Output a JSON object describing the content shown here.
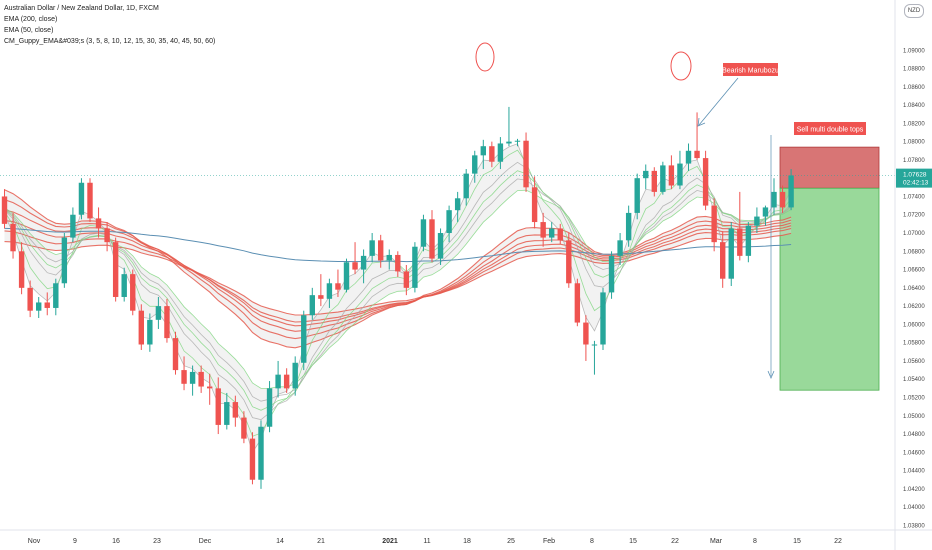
{
  "legend": {
    "title": "Australian Dollar / New Zealand Dollar, 1D, FXCM",
    "line2": "EMA (200, close)",
    "line3": "EMA (50, close)",
    "line4": "CM_Guppy_EMA&#039;s (3, 5, 8, 10, 12, 15, 30, 35, 40, 45, 50, 60)"
  },
  "currency_badge": "NZD",
  "colors": {
    "up": "#26a69a",
    "down": "#ef5350",
    "ema200": "#5b8fb3",
    "guppy_fast_up": "#7fd67f",
    "guppy_fast": "#a9a9a9",
    "guppy_slow": "#e55a4e",
    "stop_zone": "#d87575",
    "target_zone": "#99d99a",
    "axis_text": "#444444"
  },
  "chart_data": {
    "type": "candlestick",
    "ylim": [
      1.0375,
      1.0955
    ],
    "yticks": [
      "1.03800",
      "1.04000",
      "1.04200",
      "1.04400",
      "1.04600",
      "1.04800",
      "1.05000",
      "1.05200",
      "1.05400",
      "1.05600",
      "1.05800",
      "1.06000",
      "1.06200",
      "1.06400",
      "1.06600",
      "1.06800",
      "1.07000",
      "1.07200",
      "1.07400",
      "1.07600",
      "1.07800",
      "1.08000",
      "1.08200",
      "1.08400",
      "1.08600",
      "1.08800",
      "1.09000"
    ],
    "xticks": [
      "Nov",
      "9",
      "16",
      "23",
      "Dec",
      "14",
      "21",
      "2021",
      "11",
      "18",
      "25",
      "Feb",
      "8",
      "15",
      "22",
      "Mar",
      "8",
      "15",
      "22"
    ],
    "last_price": "1.07628",
    "countdown": "02:42:13",
    "annotations": {
      "bearish_label": "Bearish Marubozu",
      "sell_label": "Sell multi double tops"
    },
    "trade": {
      "entry": 1.0749,
      "stop": 1.0794,
      "target": 1.0528
    },
    "candles": [
      [
        1.074,
        1.0748,
        1.0705,
        1.071
      ],
      [
        1.071,
        1.0722,
        1.0672,
        1.068
      ],
      [
        1.068,
        1.069,
        1.0633,
        1.064
      ],
      [
        1.064,
        1.0648,
        1.0608,
        1.0615
      ],
      [
        1.0615,
        1.063,
        1.0607,
        1.0624
      ],
      [
        1.0624,
        1.0635,
        1.061,
        1.0618
      ],
      [
        1.0618,
        1.065,
        1.061,
        1.0645
      ],
      [
        1.0645,
        1.07,
        1.064,
        1.0695
      ],
      [
        1.0695,
        1.0728,
        1.069,
        1.072
      ],
      [
        1.072,
        1.076,
        1.0715,
        1.0755
      ],
      [
        1.0755,
        1.076,
        1.0712,
        1.0716
      ],
      [
        1.0716,
        1.0728,
        1.0695,
        1.0705
      ],
      [
        1.0705,
        1.0712,
        1.068,
        1.069
      ],
      [
        1.069,
        1.0695,
        1.0625,
        1.063
      ],
      [
        1.063,
        1.0662,
        1.0625,
        1.0655
      ],
      [
        1.0655,
        1.066,
        1.061,
        1.0615
      ],
      [
        1.0615,
        1.0622,
        1.0572,
        1.0578
      ],
      [
        1.0578,
        1.0612,
        1.057,
        1.0605
      ],
      [
        1.0605,
        1.063,
        1.0595,
        1.062
      ],
      [
        1.062,
        1.0628,
        1.058,
        1.0585
      ],
      [
        1.0585,
        1.0592,
        1.0545,
        1.055
      ],
      [
        1.055,
        1.0565,
        1.0528,
        1.0535
      ],
      [
        1.0535,
        1.0555,
        1.0522,
        1.0548
      ],
      [
        1.0548,
        1.0555,
        1.0525,
        1.0532
      ],
      [
        1.0532,
        1.0546,
        1.0512,
        1.053
      ],
      [
        1.053,
        1.0542,
        1.048,
        1.049
      ],
      [
        1.049,
        1.0525,
        1.0485,
        1.0515
      ],
      [
        1.0515,
        1.0522,
        1.0488,
        1.0498
      ],
      [
        1.0498,
        1.0505,
        1.047,
        1.0475
      ],
      [
        1.0475,
        1.0482,
        1.0425,
        1.043
      ],
      [
        1.043,
        1.0495,
        1.042,
        1.0488
      ],
      [
        1.0488,
        1.0538,
        1.0482,
        1.053
      ],
      [
        1.053,
        1.056,
        1.052,
        1.0545
      ],
      [
        1.0545,
        1.0552,
        1.0525,
        1.053
      ],
      [
        1.053,
        1.0565,
        1.0522,
        1.0558
      ],
      [
        1.0558,
        1.0615,
        1.055,
        1.061
      ],
      [
        1.061,
        1.064,
        1.0605,
        1.0632
      ],
      [
        1.0632,
        1.0655,
        1.062,
        1.0628
      ],
      [
        1.0628,
        1.065,
        1.0618,
        1.0645
      ],
      [
        1.0645,
        1.066,
        1.063,
        1.0638
      ],
      [
        1.0638,
        1.0672,
        1.0635,
        1.0668
      ],
      [
        1.0668,
        1.069,
        1.0655,
        1.066
      ],
      [
        1.066,
        1.0682,
        1.0645,
        1.0675
      ],
      [
        1.0675,
        1.07,
        1.0668,
        1.0692
      ],
      [
        1.0692,
        1.0698,
        1.0662,
        1.067
      ],
      [
        1.067,
        1.0682,
        1.066,
        1.0676
      ],
      [
        1.0676,
        1.068,
        1.0652,
        1.0658
      ],
      [
        1.0658,
        1.0665,
        1.0632,
        1.064
      ],
      [
        1.064,
        1.069,
        1.0635,
        1.0685
      ],
      [
        1.0685,
        1.072,
        1.068,
        1.0715
      ],
      [
        1.0715,
        1.0725,
        1.0668,
        1.0672
      ],
      [
        1.0672,
        1.0705,
        1.0665,
        1.07
      ],
      [
        1.07,
        1.073,
        1.069,
        1.0725
      ],
      [
        1.0725,
        1.0745,
        1.0712,
        1.0738
      ],
      [
        1.0738,
        1.077,
        1.073,
        1.0765
      ],
      [
        1.0765,
        1.079,
        1.0755,
        1.0785
      ],
      [
        1.0785,
        1.0802,
        1.077,
        1.0795
      ],
      [
        1.0795,
        1.08,
        1.0772,
        1.0778
      ],
      [
        1.0778,
        1.0805,
        1.077,
        1.0798
      ],
      [
        1.0798,
        1.0838,
        1.0795,
        1.08
      ],
      [
        1.08,
        1.0803,
        1.0795,
        1.0801
      ],
      [
        1.0801,
        1.081,
        1.0745,
        1.075
      ],
      [
        1.075,
        1.0762,
        1.0705,
        1.0712
      ],
      [
        1.0712,
        1.0722,
        1.0685,
        1.0695
      ],
      [
        1.0695,
        1.0712,
        1.069,
        1.0705
      ],
      [
        1.0705,
        1.071,
        1.0688,
        1.0692
      ],
      [
        1.0692,
        1.07,
        1.064,
        1.0645
      ],
      [
        1.0645,
        1.065,
        1.0598,
        1.0602
      ],
      [
        1.0602,
        1.061,
        1.056,
        1.0578
      ],
      [
        1.0578,
        1.0582,
        1.0545,
        1.0578
      ],
      [
        1.0578,
        1.064,
        1.0572,
        1.0635
      ],
      [
        1.0635,
        1.068,
        1.0628,
        1.0675
      ],
      [
        1.0675,
        1.07,
        1.0665,
        1.0692
      ],
      [
        1.0692,
        1.073,
        1.0685,
        1.0722
      ],
      [
        1.0722,
        1.0765,
        1.0715,
        1.076
      ],
      [
        1.076,
        1.0775,
        1.0748,
        1.0768
      ],
      [
        1.0768,
        1.0772,
        1.074,
        1.0745
      ],
      [
        1.0745,
        1.0778,
        1.0742,
        1.0774
      ],
      [
        1.0774,
        1.0785,
        1.0748,
        1.0752
      ],
      [
        1.0752,
        1.079,
        1.0748,
        1.0776
      ],
      [
        1.0776,
        1.0798,
        1.0768,
        1.079
      ],
      [
        1.079,
        1.0832,
        1.078,
        1.0782
      ],
      [
        1.0782,
        1.079,
        1.0725,
        1.073
      ],
      [
        1.073,
        1.0738,
        1.068,
        1.069
      ],
      [
        1.069,
        1.0702,
        1.064,
        1.065
      ],
      [
        1.065,
        1.0712,
        1.0642,
        1.0705
      ],
      [
        1.0705,
        1.0745,
        1.067,
        1.0675
      ],
      [
        1.0675,
        1.0712,
        1.0668,
        1.0708
      ],
      [
        1.0708,
        1.0728,
        1.07,
        1.0718
      ],
      [
        1.0718,
        1.073,
        1.0708,
        1.0728
      ],
      [
        1.0728,
        1.076,
        1.072,
        1.0745
      ],
      [
        1.0745,
        1.0752,
        1.0722,
        1.0728
      ],
      [
        1.0728,
        1.077,
        1.0725,
        1.0763
      ]
    ]
  }
}
